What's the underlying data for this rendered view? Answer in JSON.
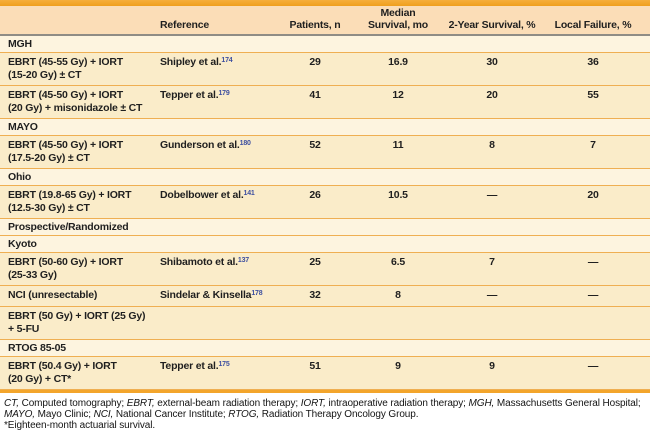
{
  "colors": {
    "accent_orange": "#F3A52B",
    "header_bg": "#FBDDB7",
    "section_row_bg": "#FDF4DF",
    "data_row_bg": "#FAECC9",
    "row_divider": "#EFAF52",
    "header_divider": "#8F8C85",
    "text": "#1F1F1F",
    "reference_superscript": "#3D4FA0"
  },
  "table": {
    "columns": [
      "",
      "Reference",
      "Patients, n",
      "Median\nSurvival, mo",
      "2-Year Survival, %",
      "Local Failure, %"
    ],
    "rows": [
      {
        "type": "section",
        "label": "MGH"
      },
      {
        "type": "data",
        "treatment": "EBRT (45-55 Gy) + IORT\n(15-20 Gy) ± CT",
        "reference": "Shipley et al.",
        "reference_sup": "174",
        "patients": "29",
        "median_survival": "16.9",
        "two_year_survival": "30",
        "local_failure": "36"
      },
      {
        "type": "data",
        "treatment": "EBRT (45-50 Gy) + IORT\n(20 Gy) + misonidazole ± CT",
        "reference": "Tepper et al.",
        "reference_sup": "179",
        "patients": "41",
        "median_survival": "12",
        "two_year_survival": "20",
        "local_failure": "55"
      },
      {
        "type": "section",
        "label": "MAYO"
      },
      {
        "type": "data",
        "treatment": "EBRT (45-50 Gy) + IORT\n(17.5-20 Gy) ± CT",
        "reference": "Gunderson et al.",
        "reference_sup": "180",
        "patients": "52",
        "median_survival": "11",
        "two_year_survival": "8",
        "local_failure": "7"
      },
      {
        "type": "section",
        "label": "Ohio"
      },
      {
        "type": "data",
        "treatment": "EBRT (19.8-65 Gy) + IORT\n(12.5-30 Gy) ± CT",
        "reference": "Dobelbower et al.",
        "reference_sup": "141",
        "patients": "26",
        "median_survival": "10.5",
        "two_year_survival": "—",
        "local_failure": "20"
      },
      {
        "type": "section",
        "label": "Prospective/Randomized"
      },
      {
        "type": "section",
        "label": "Kyoto"
      },
      {
        "type": "data",
        "treatment": "EBRT (50-60 Gy) + IORT\n(25-33 Gy)",
        "reference": "Shibamoto et al.",
        "reference_sup": "137",
        "patients": "25",
        "median_survival": "6.5",
        "two_year_survival": "7",
        "local_failure": "—"
      },
      {
        "type": "data",
        "treatment": "NCI (unresectable)",
        "reference": "Sindelar & Kinsella",
        "reference_sup": "178",
        "patients": "32",
        "median_survival": "8",
        "two_year_survival": "—",
        "local_failure": "—"
      },
      {
        "type": "data",
        "treatment": "EBRT (50 Gy) + IORT (25 Gy)\n+ 5-FU",
        "reference": "",
        "reference_sup": "",
        "patients": "",
        "median_survival": "",
        "two_year_survival": "",
        "local_failure": ""
      },
      {
        "type": "section",
        "label": "RTOG 85-05"
      },
      {
        "type": "data",
        "treatment": "EBRT (50.4 Gy) + IORT\n(20 Gy) + CT*",
        "reference": "Tepper et al.",
        "reference_sup": "175",
        "patients": "51",
        "median_survival": "9",
        "two_year_survival": "9",
        "local_failure": "—"
      }
    ]
  },
  "footnotes": {
    "abbreviations": [
      {
        "text": "CT,",
        "italic": true
      },
      {
        "text": " Computed tomography; "
      },
      {
        "text": "EBRT,",
        "italic": true
      },
      {
        "text": " external-beam radiation therapy; "
      },
      {
        "text": "IORT,",
        "italic": true
      },
      {
        "text": " intraoperative radiation therapy; "
      },
      {
        "text": "MGH,",
        "italic": true
      },
      {
        "text": " Massachusetts General Hospital; "
      },
      {
        "text": "MAYO,",
        "italic": true
      },
      {
        "text": " Mayo Clinic; "
      },
      {
        "text": "NCI,",
        "italic": true
      },
      {
        "text": " National Cancer Institute; "
      },
      {
        "text": "RTOG,",
        "italic": true
      },
      {
        "text": " Radiation Therapy Oncology Group."
      }
    ],
    "asterisk": "*Eighteen-month actuarial survival."
  }
}
